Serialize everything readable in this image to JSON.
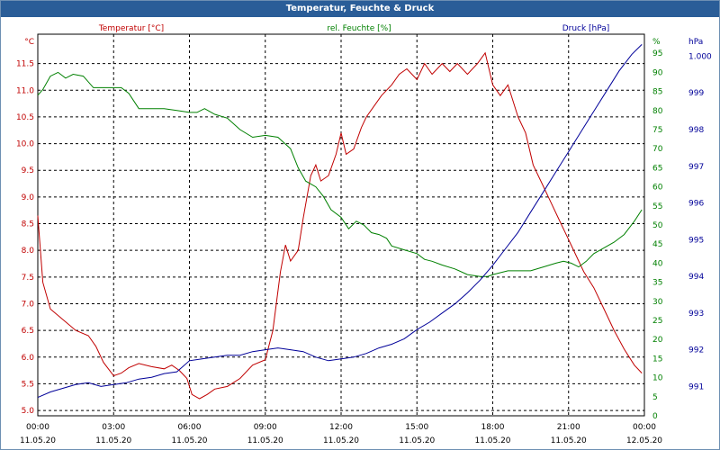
{
  "window": {
    "title": "Temperatur, Feuchte & Druck"
  },
  "chart_data": {
    "type": "line",
    "title": "Temperatur, Feuchte & Druck",
    "x_labels": [
      [
        "00:00",
        "11.05.20"
      ],
      [
        "03:00",
        "11.05.20"
      ],
      [
        "06:00",
        "11.05.20"
      ],
      [
        "09:00",
        "11.05.20"
      ],
      [
        "12:00",
        "11.05.20"
      ],
      [
        "15:00",
        "11.05.20"
      ],
      [
        "18:00",
        "11.05.20"
      ],
      [
        "21:00",
        "11.05.20"
      ],
      [
        "00:00",
        "12.05.20"
      ]
    ],
    "x_range_hours": [
      0,
      24
    ],
    "grid": true,
    "axes": {
      "left": {
        "unit_label": "°C",
        "range": [
          4.9,
          12.05
        ],
        "ticks": [
          "5.0",
          "5.5",
          "6.0",
          "6.5",
          "7.0",
          "7.5",
          "8.0",
          "8.5",
          "9.0",
          "9.5",
          "10.0",
          "10.5",
          "11.0",
          "11.5"
        ],
        "color": "#c00000"
      },
      "right1": {
        "unit_label": "%",
        "range": [
          0,
          100
        ],
        "ticks": [
          "0",
          "5",
          "10",
          "15",
          "20",
          "25",
          "30",
          "35",
          "40",
          "45",
          "50",
          "55",
          "60",
          "65",
          "70",
          "75",
          "80",
          "85",
          "90",
          "95"
        ],
        "color": "#008000"
      },
      "right2": {
        "unit_label": "hPa",
        "range": [
          990.2,
          1000.6
        ],
        "ticks": [
          "991",
          "992",
          "993",
          "994",
          "995",
          "996",
          "997",
          "998",
          "999",
          "1.000"
        ],
        "color": "#000099"
      }
    },
    "series": [
      {
        "name": "Temperatur [°C]",
        "axis": "left",
        "color": "#c00000",
        "points": [
          [
            0,
            8.65
          ],
          [
            0.2,
            7.4
          ],
          [
            0.5,
            6.9
          ],
          [
            1,
            6.7
          ],
          [
            1.5,
            6.5
          ],
          [
            2,
            6.4
          ],
          [
            2.3,
            6.2
          ],
          [
            2.6,
            5.9
          ],
          [
            3,
            5.65
          ],
          [
            3.3,
            5.7
          ],
          [
            3.6,
            5.8
          ],
          [
            4,
            5.88
          ],
          [
            4.5,
            5.82
          ],
          [
            5,
            5.78
          ],
          [
            5.3,
            5.85
          ],
          [
            5.6,
            5.75
          ],
          [
            5.9,
            5.6
          ],
          [
            6.1,
            5.3
          ],
          [
            6.4,
            5.22
          ],
          [
            6.7,
            5.3
          ],
          [
            7,
            5.4
          ],
          [
            7.5,
            5.45
          ],
          [
            8,
            5.6
          ],
          [
            8.5,
            5.85
          ],
          [
            9,
            5.95
          ],
          [
            9.3,
            6.5
          ],
          [
            9.6,
            7.6
          ],
          [
            9.8,
            8.1
          ],
          [
            10,
            7.8
          ],
          [
            10.3,
            8.0
          ],
          [
            10.5,
            8.6
          ],
          [
            10.8,
            9.4
          ],
          [
            11,
            9.6
          ],
          [
            11.2,
            9.3
          ],
          [
            11.5,
            9.4
          ],
          [
            11.8,
            9.8
          ],
          [
            12,
            10.2
          ],
          [
            12.2,
            9.8
          ],
          [
            12.5,
            9.9
          ],
          [
            12.8,
            10.3
          ],
          [
            13,
            10.5
          ],
          [
            13.3,
            10.7
          ],
          [
            13.6,
            10.9
          ],
          [
            14,
            11.1
          ],
          [
            14.3,
            11.3
          ],
          [
            14.6,
            11.4
          ],
          [
            15,
            11.2
          ],
          [
            15.3,
            11.5
          ],
          [
            15.6,
            11.3
          ],
          [
            16,
            11.5
          ],
          [
            16.3,
            11.35
          ],
          [
            16.6,
            11.5
          ],
          [
            17,
            11.3
          ],
          [
            17.4,
            11.5
          ],
          [
            17.7,
            11.7
          ],
          [
            18,
            11.1
          ],
          [
            18.3,
            10.9
          ],
          [
            18.6,
            11.1
          ],
          [
            19,
            10.5
          ],
          [
            19.3,
            10.2
          ],
          [
            19.6,
            9.6
          ],
          [
            20,
            9.2
          ],
          [
            20.3,
            8.9
          ],
          [
            20.6,
            8.6
          ],
          [
            21,
            8.2
          ],
          [
            21.3,
            7.9
          ],
          [
            21.6,
            7.6
          ],
          [
            22,
            7.3
          ],
          [
            22.4,
            6.9
          ],
          [
            22.8,
            6.5
          ],
          [
            23.2,
            6.15
          ],
          [
            23.6,
            5.85
          ],
          [
            23.9,
            5.7
          ]
        ]
      },
      {
        "name": "rel. Feuchte [%]",
        "axis": "right1",
        "color": "#008000",
        "points": [
          [
            0,
            84
          ],
          [
            0.2,
            85.5
          ],
          [
            0.5,
            89
          ],
          [
            0.8,
            90
          ],
          [
            1.1,
            88.5
          ],
          [
            1.4,
            89.5
          ],
          [
            1.8,
            89
          ],
          [
            2.2,
            86
          ],
          [
            2.6,
            86
          ],
          [
            3,
            86
          ],
          [
            3.3,
            86
          ],
          [
            3.6,
            84.5
          ],
          [
            4,
            80.5
          ],
          [
            4.5,
            80.5
          ],
          [
            5,
            80.5
          ],
          [
            5.5,
            80
          ],
          [
            6,
            79.5
          ],
          [
            6.3,
            79.5
          ],
          [
            6.6,
            80.5
          ],
          [
            7,
            79
          ],
          [
            7.5,
            78
          ],
          [
            8,
            75
          ],
          [
            8.5,
            73
          ],
          [
            9,
            73.5
          ],
          [
            9.5,
            73
          ],
          [
            10,
            70
          ],
          [
            10.3,
            65
          ],
          [
            10.6,
            61.5
          ],
          [
            11,
            60
          ],
          [
            11.3,
            57.5
          ],
          [
            11.6,
            54
          ],
          [
            12,
            52
          ],
          [
            12.3,
            49
          ],
          [
            12.6,
            51
          ],
          [
            12.9,
            50
          ],
          [
            13.2,
            48
          ],
          [
            13.5,
            47.5
          ],
          [
            13.8,
            46.5
          ],
          [
            14,
            44.5
          ],
          [
            14.5,
            43.5
          ],
          [
            15,
            42.5
          ],
          [
            15.3,
            41
          ],
          [
            15.6,
            40.5
          ],
          [
            16,
            39.5
          ],
          [
            16.5,
            38.5
          ],
          [
            17,
            37
          ],
          [
            17.5,
            36.5
          ],
          [
            17.8,
            36.5
          ],
          [
            18,
            37
          ],
          [
            18.3,
            37.5
          ],
          [
            18.6,
            38
          ],
          [
            19,
            38
          ],
          [
            19.5,
            38
          ],
          [
            20,
            39
          ],
          [
            20.5,
            40
          ],
          [
            20.8,
            40.5
          ],
          [
            21.1,
            40
          ],
          [
            21.4,
            39
          ],
          [
            21.7,
            40.5
          ],
          [
            22,
            42.5
          ],
          [
            22.4,
            44
          ],
          [
            22.8,
            45.5
          ],
          [
            23.2,
            47.5
          ],
          [
            23.6,
            51
          ],
          [
            23.9,
            54
          ]
        ]
      },
      {
        "name": "Druck [hPa]",
        "axis": "right2",
        "color": "#000099",
        "points": [
          [
            0,
            990.7
          ],
          [
            0.5,
            990.85
          ],
          [
            1,
            990.95
          ],
          [
            1.5,
            991.05
          ],
          [
            2,
            991.1
          ],
          [
            2.5,
            991.0
          ],
          [
            3,
            991.05
          ],
          [
            3.5,
            991.1
          ],
          [
            4,
            991.2
          ],
          [
            4.5,
            991.25
          ],
          [
            5,
            991.35
          ],
          [
            5.5,
            991.4
          ],
          [
            6,
            991.7
          ],
          [
            6.5,
            991.75
          ],
          [
            7,
            991.8
          ],
          [
            7.5,
            991.85
          ],
          [
            8,
            991.85
          ],
          [
            8.5,
            991.95
          ],
          [
            9,
            992.0
          ],
          [
            9.5,
            992.05
          ],
          [
            10,
            992.0
          ],
          [
            10.5,
            991.95
          ],
          [
            11,
            991.8
          ],
          [
            11.5,
            991.7
          ],
          [
            12,
            991.75
          ],
          [
            12.5,
            991.8
          ],
          [
            13,
            991.9
          ],
          [
            13.5,
            992.05
          ],
          [
            14,
            992.15
          ],
          [
            14.5,
            992.3
          ],
          [
            15,
            992.55
          ],
          [
            15.5,
            992.75
          ],
          [
            16,
            993.0
          ],
          [
            16.5,
            993.25
          ],
          [
            17,
            993.55
          ],
          [
            17.5,
            993.9
          ],
          [
            18,
            994.3
          ],
          [
            18.5,
            994.75
          ],
          [
            19,
            995.2
          ],
          [
            19.5,
            995.75
          ],
          [
            20,
            996.3
          ],
          [
            20.5,
            996.85
          ],
          [
            21,
            997.4
          ],
          [
            21.5,
            997.95
          ],
          [
            22,
            998.5
          ],
          [
            22.5,
            999.05
          ],
          [
            23,
            999.6
          ],
          [
            23.5,
            1000.05
          ],
          [
            23.9,
            1000.32
          ]
        ]
      }
    ]
  }
}
